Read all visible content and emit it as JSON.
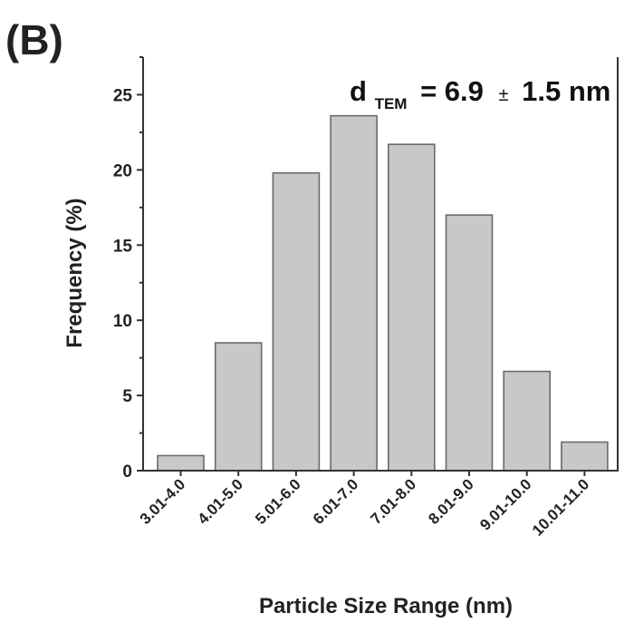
{
  "panel_label": "(B)",
  "annotation": {
    "main": "d",
    "subscript": "TEM",
    "value": "= 6.9",
    "pm": "±",
    "error": "1.5 nm"
  },
  "chart_data": {
    "type": "bar",
    "categories": [
      "3.01-4.0",
      "4.01-5.0",
      "5.01-6.0",
      "6.01-7.0",
      "7.01-8.0",
      "8.01-9.0",
      "9.01-10.0",
      "10.01-11.0"
    ],
    "values": [
      1.0,
      8.5,
      19.8,
      23.6,
      21.7,
      17.0,
      6.6,
      1.9
    ],
    "title": "",
    "xlabel": "Particle Size Range (nm)",
    "ylabel": "Frequency (%)",
    "ylim": [
      0,
      27.5
    ],
    "yticks": [
      0,
      5,
      10,
      15,
      20,
      25
    ],
    "ytick_labels": [
      "0",
      "5",
      "10",
      "15",
      "20",
      "25"
    ],
    "grid": false,
    "legend": "none",
    "bar_color": "#c8c8c8",
    "bar_edge_color": "#6a6a6a"
  }
}
